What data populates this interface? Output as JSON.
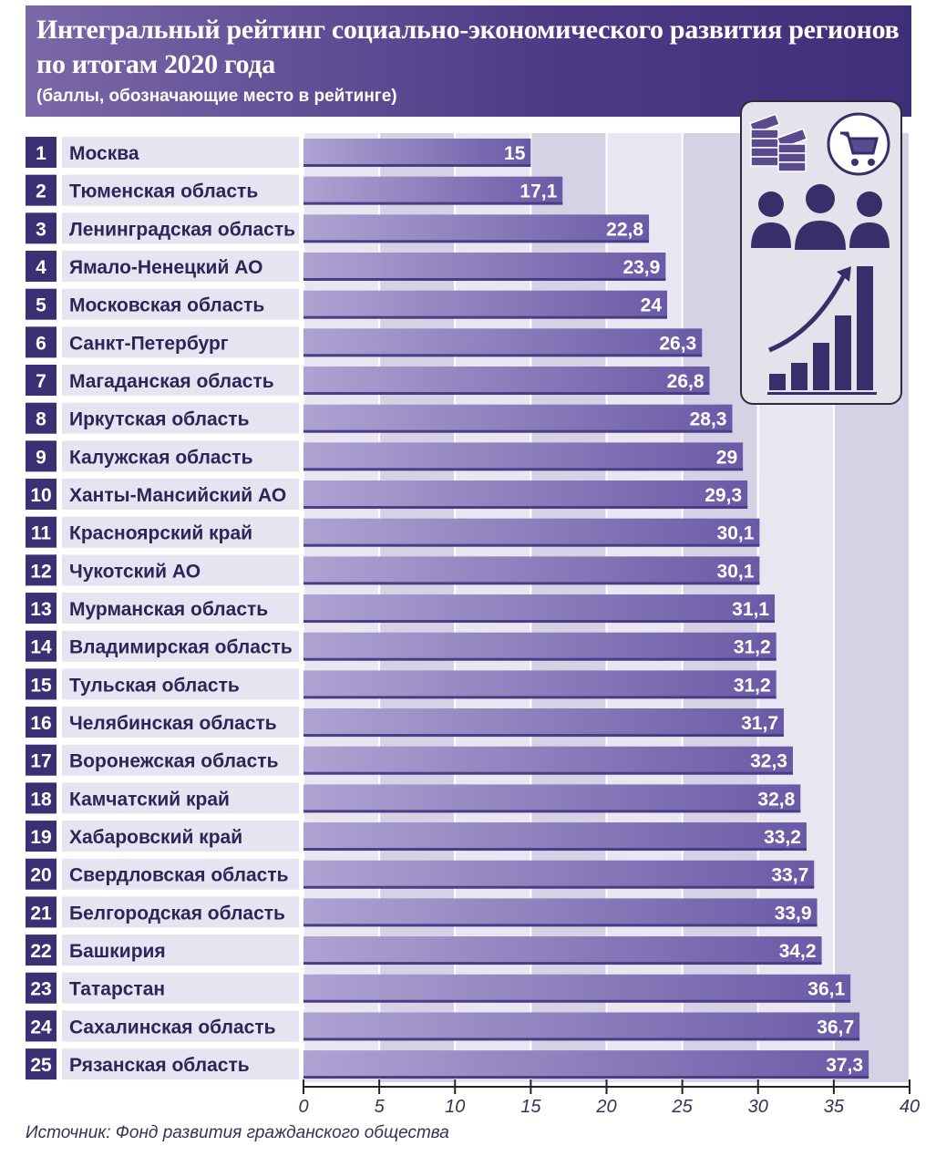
{
  "header": {
    "title": "Интегральный рейтинг социально-экономического развития регионов по итогам 2020 года",
    "subtitle": "(баллы, обозначающие место в рейтинге)"
  },
  "source": "Источник: Фонд развития гражданского общества",
  "colors": {
    "header": "#4c3a86",
    "bar": "#7d6db4",
    "rank_box": "#3d2f74",
    "label_bg": "#e6e4f1"
  },
  "chart_data": {
    "type": "bar",
    "orientation": "horizontal",
    "title": "Интегральный рейтинг социально-экономического развития регионов по итогам 2020 года",
    "subtitle": "(баллы, обозначающие место в рейтинге)",
    "xlim": [
      0,
      40
    ],
    "xticks": [
      0,
      5,
      10,
      15,
      20,
      25,
      30,
      35,
      40
    ],
    "ranks": [
      1,
      2,
      3,
      4,
      5,
      6,
      7,
      8,
      9,
      10,
      11,
      12,
      13,
      14,
      15,
      16,
      17,
      18,
      19,
      20,
      21,
      22,
      23,
      24,
      25
    ],
    "categories": [
      "Москва",
      "Тюменская область",
      "Ленинградская область",
      "Ямало-Ненецкий АО",
      "Московская область",
      "Санкт-Петербург",
      "Магаданская область",
      "Иркутская область",
      "Калужская область",
      "Ханты-Мансийский АО",
      "Красноярский край",
      "Чукотский АО",
      "Мурманская область",
      "Владимирская область",
      "Тульская область",
      "Челябинская область",
      "Воронежская область",
      "Камчатский край",
      "Хабаровский край",
      "Свердловская область",
      "Белгородская область",
      "Башкирия",
      "Татарстан",
      "Сахалинская область",
      "Рязанская область"
    ],
    "values": [
      15,
      17.1,
      22.8,
      23.9,
      24,
      26.3,
      26.8,
      28.3,
      29,
      29.3,
      30.1,
      30.1,
      31.1,
      31.2,
      31.2,
      31.7,
      32.3,
      32.8,
      33.2,
      33.7,
      33.9,
      34.2,
      36.1,
      36.7,
      37.3
    ],
    "value_labels": [
      "15",
      "17,1",
      "22,8",
      "23,9",
      "24",
      "26,3",
      "26,8",
      "28,3",
      "29",
      "29,3",
      "30,1",
      "30,1",
      "31,1",
      "31,2",
      "31,2",
      "31,7",
      "32,3",
      "32,8",
      "33,2",
      "33,7",
      "33,9",
      "34,2",
      "36,1",
      "36,7",
      "37,3"
    ]
  }
}
